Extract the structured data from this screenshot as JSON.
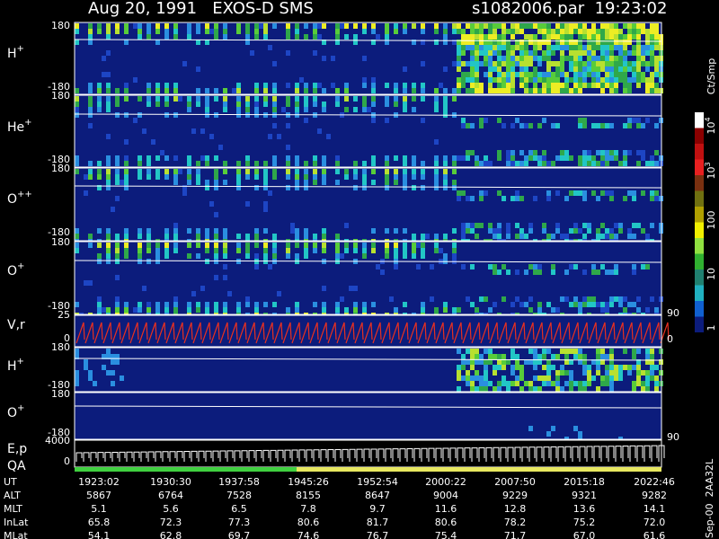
{
  "header": {
    "title": "Aug 20, 1991   EXOS-D SMS",
    "file": "s1082006.par  19:23:02"
  },
  "panels": [
    {
      "label": "H",
      "sup": "+",
      "yticks": [
        180,
        -180
      ]
    },
    {
      "label": "He",
      "sup": "+",
      "yticks": [
        180,
        -180
      ]
    },
    {
      "label": "O",
      "sup": "++",
      "yticks": [
        180,
        -180
      ]
    },
    {
      "label": "O",
      "sup": "+",
      "yticks": [
        180,
        -180
      ]
    },
    {
      "label": "V,r",
      "yticks": [
        25,
        0
      ],
      "y2ticks": [
        90,
        0
      ]
    },
    {
      "label": "H",
      "sup": "+",
      "yticks": [
        180,
        -180
      ]
    },
    {
      "label": "O",
      "sup": "+",
      "yticks": [
        180,
        -180
      ],
      "y2ticks": [
        90
      ]
    },
    {
      "label": "E,p",
      "yticks": [
        4000,
        0
      ]
    }
  ],
  "qa_label": "QA",
  "colorbar": {
    "label": "Ct/Smp",
    "ticks": [
      {
        "base": "10",
        "exp": "4"
      },
      {
        "base": "10",
        "exp": "3"
      },
      "100",
      "10",
      "1"
    ]
  },
  "table": {
    "rows": [
      [
        "UT",
        "1923:02",
        "1930:30",
        "1937:58",
        "1945:26",
        "1952:54",
        "2000:22",
        "2007:50",
        "2015:18",
        "2022:46"
      ],
      [
        "ALT",
        "5867",
        "6764",
        "7528",
        "8155",
        "8647",
        "9004",
        "9229",
        "9321",
        "9282"
      ],
      [
        "MLT",
        "5.1",
        "5.6",
        "6.5",
        "7.8",
        "9.7",
        "11.6",
        "12.8",
        "13.6",
        "14.1"
      ],
      [
        "InLat",
        "65.8",
        "72.3",
        "77.3",
        "80.6",
        "81.7",
        "80.6",
        "78.2",
        "75.2",
        "72.0"
      ],
      [
        "MLat",
        "54.1",
        "62.8",
        "69.7",
        "74.6",
        "76.7",
        "75.4",
        "71.7",
        "67.0",
        "61.6"
      ]
    ]
  },
  "footer": "Sep-00  2AA32L"
}
